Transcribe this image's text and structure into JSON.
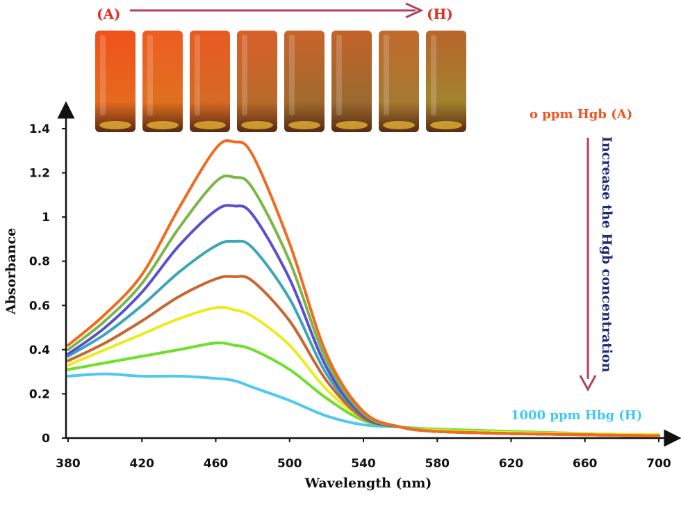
{
  "chart_data": {
    "type": "line",
    "title": "",
    "xlabel": "Wavelength (nm)",
    "ylabel": "Absorbance",
    "xlim": [
      380,
      700
    ],
    "ylim": [
      0,
      1.4
    ],
    "xticks": [
      "380",
      "420",
      "460",
      "500",
      "540",
      "580",
      "620",
      "660",
      "700"
    ],
    "yticks": [
      "0",
      "0.2",
      "0.4",
      "0.6",
      "0.8",
      "1",
      "1.2",
      "1.4"
    ],
    "grid": false,
    "legend": "none",
    "series": [
      {
        "color": "#F26A1F",
        "x": [
          380,
          400,
          420,
          440,
          460,
          470,
          480,
          500,
          520,
          540,
          560,
          580,
          620,
          660,
          700
        ],
        "y": [
          0.42,
          0.56,
          0.74,
          1.04,
          1.31,
          1.34,
          1.28,
          0.88,
          0.38,
          0.12,
          0.05,
          0.03,
          0.02,
          0.015,
          0.01
        ]
      },
      {
        "color": "#7AB648",
        "x": [
          380,
          400,
          420,
          440,
          460,
          470,
          480,
          500,
          520,
          540,
          560,
          580,
          620,
          660,
          700
        ],
        "y": [
          0.4,
          0.53,
          0.7,
          0.95,
          1.16,
          1.18,
          1.13,
          0.8,
          0.35,
          0.11,
          0.05,
          0.03,
          0.02,
          0.015,
          0.01
        ]
      },
      {
        "color": "#5A4FD1",
        "x": [
          380,
          400,
          420,
          440,
          460,
          470,
          480,
          500,
          520,
          540,
          560,
          580,
          620,
          660,
          700
        ],
        "y": [
          0.38,
          0.5,
          0.66,
          0.87,
          1.03,
          1.05,
          1.01,
          0.72,
          0.32,
          0.1,
          0.05,
          0.03,
          0.02,
          0.015,
          0.01
        ]
      },
      {
        "color": "#3CA6B8",
        "x": [
          380,
          400,
          420,
          440,
          460,
          470,
          480,
          500,
          520,
          540,
          560,
          580,
          620,
          660,
          700
        ],
        "y": [
          0.37,
          0.47,
          0.6,
          0.75,
          0.87,
          0.89,
          0.86,
          0.63,
          0.29,
          0.1,
          0.05,
          0.03,
          0.02,
          0.015,
          0.01
        ]
      },
      {
        "color": "#C8662F",
        "x": [
          380,
          400,
          420,
          440,
          460,
          470,
          480,
          500,
          520,
          540,
          560,
          580,
          620,
          660,
          700
        ],
        "y": [
          0.35,
          0.43,
          0.53,
          0.64,
          0.72,
          0.73,
          0.71,
          0.53,
          0.26,
          0.09,
          0.05,
          0.03,
          0.02,
          0.015,
          0.01
        ]
      },
      {
        "color": "#EDEB1E",
        "x": [
          380,
          400,
          420,
          440,
          460,
          470,
          480,
          500,
          520,
          540,
          560,
          580,
          620,
          660,
          700
        ],
        "y": [
          0.33,
          0.4,
          0.47,
          0.54,
          0.59,
          0.58,
          0.55,
          0.42,
          0.22,
          0.09,
          0.05,
          0.035,
          0.025,
          0.02,
          0.015
        ]
      },
      {
        "color": "#6FE02A",
        "x": [
          380,
          400,
          420,
          440,
          460,
          470,
          480,
          500,
          520,
          540,
          560,
          580,
          620,
          660,
          700
        ],
        "y": [
          0.31,
          0.34,
          0.37,
          0.4,
          0.43,
          0.42,
          0.4,
          0.31,
          0.18,
          0.08,
          0.05,
          0.04,
          0.03,
          0.02,
          0.015
        ]
      },
      {
        "color": "#4FC9EE",
        "x": [
          380,
          400,
          420,
          440,
          460,
          470,
          480,
          500,
          520,
          540,
          560,
          580,
          620,
          660,
          700
        ],
        "y": [
          0.28,
          0.29,
          0.28,
          0.28,
          0.27,
          0.26,
          0.23,
          0.17,
          0.1,
          0.06,
          0.05,
          0.04,
          0.03,
          0.02,
          0.01
        ]
      }
    ]
  },
  "annotations": {
    "label_a_top": "(A)",
    "label_h_top": "(H)",
    "label_zero": "o ppm Hgb (A)",
    "label_trend": "Increase the Hgb concentration",
    "label_thousand": "1000 ppm Hbg (H)"
  },
  "colors": {
    "annot_arrow": "#B5405A",
    "label_red": "#E0302A",
    "label_orange": "#F0541E",
    "label_navy": "#1E2A7A",
    "label_cyan": "#41C8F0"
  },
  "vials": [
    {
      "top": "#F0521A",
      "bottom": "#E56A1E"
    },
    {
      "top": "#EE5C22",
      "bottom": "#E07020"
    },
    {
      "top": "#E85A22",
      "bottom": "#D66A24"
    },
    {
      "top": "#D8602A",
      "bottom": "#B96A2A"
    },
    {
      "top": "#C9642C",
      "bottom": "#A06A2C"
    },
    {
      "top": "#C4622A",
      "bottom": "#9A6A30"
    },
    {
      "top": "#C26A2E",
      "bottom": "#A57A30"
    },
    {
      "top": "#B8652C",
      "bottom": "#A2842E"
    }
  ]
}
